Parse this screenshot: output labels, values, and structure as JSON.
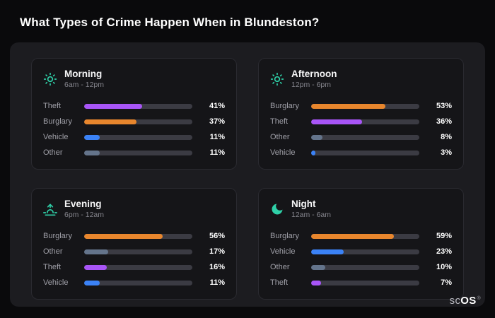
{
  "header": {
    "title": "What Types of Crime Happen When in Blundeston?"
  },
  "brand": {
    "light": "sc",
    "bold": "OS",
    "reg": "®"
  },
  "colors": {
    "accent_teal": "#2fd0a8",
    "bar_track": "#3b3b43",
    "theft": "#a855f7",
    "burglary": "#e8862d",
    "vehicle": "#3b82f6",
    "other": "#64748b"
  },
  "chart_data": [
    {
      "type": "bar",
      "orientation": "horizontal",
      "id": "morning",
      "title": "Morning",
      "time_range": "6am - 12pm",
      "icon": "sun-icon",
      "categories": [
        "Theft",
        "Burglary",
        "Vehicle",
        "Other"
      ],
      "values": [
        41,
        37,
        11,
        11
      ],
      "rows": [
        {
          "label": "Theft",
          "value": 41,
          "pct": "41%",
          "color": "#a855f7"
        },
        {
          "label": "Burglary",
          "value": 37,
          "pct": "37%",
          "color": "#e8862d"
        },
        {
          "label": "Vehicle",
          "value": 11,
          "pct": "11%",
          "color": "#3b82f6"
        },
        {
          "label": "Other",
          "value": 11,
          "pct": "11%",
          "color": "#64748b"
        }
      ]
    },
    {
      "type": "bar",
      "orientation": "horizontal",
      "id": "afternoon",
      "title": "Afternoon",
      "time_range": "12pm - 6pm",
      "icon": "sun-icon",
      "categories": [
        "Burglary",
        "Theft",
        "Other",
        "Vehicle"
      ],
      "values": [
        53,
        36,
        8,
        3
      ],
      "rows": [
        {
          "label": "Burglary",
          "value": 53,
          "pct": "53%",
          "color": "#e8862d"
        },
        {
          "label": "Theft",
          "value": 36,
          "pct": "36%",
          "color": "#a855f7"
        },
        {
          "label": "Other",
          "value": 8,
          "pct": "8%",
          "color": "#64748b"
        },
        {
          "label": "Vehicle",
          "value": 3,
          "pct": "3%",
          "color": "#3b82f6"
        }
      ]
    },
    {
      "type": "bar",
      "orientation": "horizontal",
      "id": "evening",
      "title": "Evening",
      "time_range": "6pm - 12am",
      "icon": "sunset-icon",
      "categories": [
        "Burglary",
        "Other",
        "Theft",
        "Vehicle"
      ],
      "values": [
        56,
        17,
        16,
        11
      ],
      "rows": [
        {
          "label": "Burglary",
          "value": 56,
          "pct": "56%",
          "color": "#e8862d"
        },
        {
          "label": "Other",
          "value": 17,
          "pct": "17%",
          "color": "#64748b"
        },
        {
          "label": "Theft",
          "value": 16,
          "pct": "16%",
          "color": "#a855f7"
        },
        {
          "label": "Vehicle",
          "value": 11,
          "pct": "11%",
          "color": "#3b82f6"
        }
      ]
    },
    {
      "type": "bar",
      "orientation": "horizontal",
      "id": "night",
      "title": "Night",
      "time_range": "12am - 6am",
      "icon": "moon-icon",
      "categories": [
        "Burglary",
        "Vehicle",
        "Other",
        "Theft"
      ],
      "values": [
        59,
        23,
        10,
        7
      ],
      "rows": [
        {
          "label": "Burglary",
          "value": 59,
          "pct": "59%",
          "color": "#e8862d"
        },
        {
          "label": "Vehicle",
          "value": 23,
          "pct": "23%",
          "color": "#3b82f6"
        },
        {
          "label": "Other",
          "value": 10,
          "pct": "10%",
          "color": "#64748b"
        },
        {
          "label": "Theft",
          "value": 7,
          "pct": "7%",
          "color": "#a855f7"
        }
      ]
    }
  ]
}
